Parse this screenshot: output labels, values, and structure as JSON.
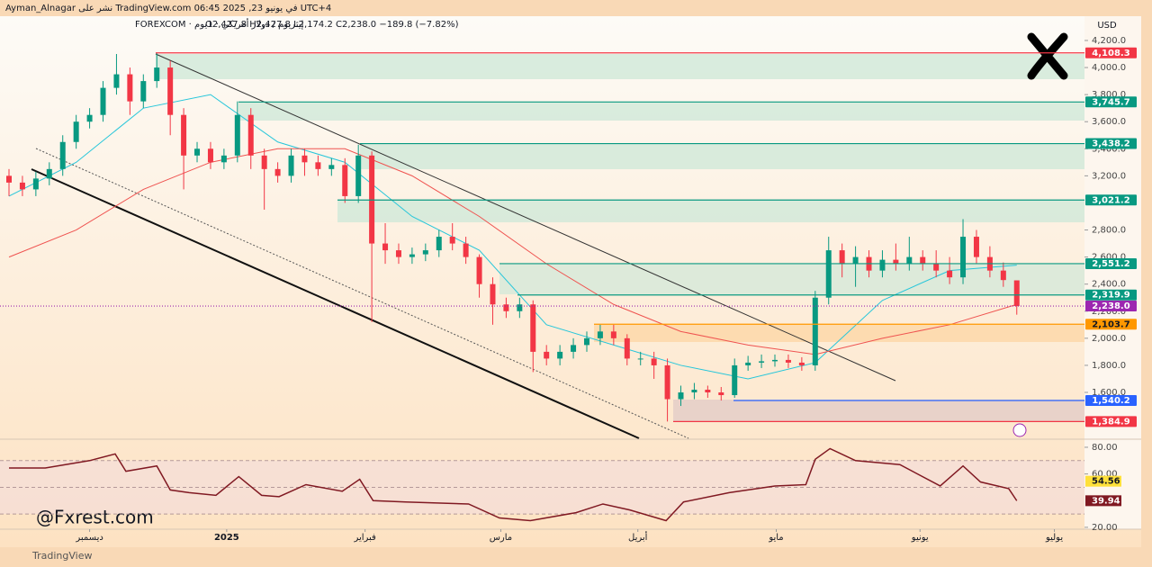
{
  "chart_data": {
    "type": "candlestick",
    "header": {
      "published": "Ayman_Alnagar نشر على TradingView.com في يونيو 23, 2025 06:45 UTC+4",
      "symbol": "إيثريوم / دولار أمريكي · 1يوم · FOREXCOM",
      "ohlc": "O2,427.8 H2,427.8 L2,174.2 C2,238.0 −189.8 (−7.82%)"
    },
    "currency": "USD",
    "watermark": "@Fxrest.com",
    "footer": "TradingView",
    "up_color": "#089981",
    "down_color": "#f23645",
    "xlim": [
      -0.67,
      80.04
    ],
    "xticks": [
      {
        "value": 6.0,
        "label": "ديسمبر"
      },
      {
        "value": 16.2,
        "label": "2025"
      },
      {
        "value": 26.5,
        "label": "فبراير"
      },
      {
        "value": 36.6,
        "label": "مارس"
      },
      {
        "value": 46.8,
        "label": "أبريل"
      },
      {
        "value": 57.1,
        "label": "مايو"
      },
      {
        "value": 67.8,
        "label": "يونيو"
      },
      {
        "value": 77.8,
        "label": "يوليو"
      }
    ],
    "ylim": [
      1261,
      4366
    ],
    "yticks": [
      {
        "value": 1600,
        "label": "1,600.0"
      },
      {
        "value": 1800,
        "label": "1,800.0"
      },
      {
        "value": 2000,
        "label": "2,000.0"
      },
      {
        "value": 2200,
        "label": "2,200.0"
      },
      {
        "value": 2400,
        "label": "2,400.0"
      },
      {
        "value": 2600,
        "label": "2,600.0"
      },
      {
        "value": 2800,
        "label": "2,800.0"
      },
      {
        "value": 3200,
        "label": "3,200.0"
      },
      {
        "value": 3400,
        "label": "3,400.0"
      },
      {
        "value": 3600,
        "label": "3,600.0"
      },
      {
        "value": 3800,
        "label": "3,800.0"
      },
      {
        "value": 4000,
        "label": "4,000.0"
      },
      {
        "value": 4200,
        "label": "4,200.0"
      }
    ],
    "open": [
      3200,
      3150,
      3100,
      3180,
      3250,
      3450,
      3600,
      3650,
      3850,
      3950,
      3750,
      3900,
      4000,
      3650,
      3350,
      3400,
      3300,
      3350,
      3650,
      3350,
      3250,
      3200,
      3350,
      3300,
      3250,
      3280,
      3050,
      3350,
      2700,
      2650,
      2600,
      2620,
      2650,
      2750,
      2700,
      2600,
      2400,
      2250,
      2200,
      2250,
      1900,
      1850,
      1900,
      1950,
      2000,
      2050,
      2000,
      1850,
      1850,
      1800,
      1550,
      1600,
      1620,
      1600,
      1580,
      1800,
      1820,
      1830,
      1840,
      1820,
      1800,
      2300,
      2650,
      2550,
      2600,
      2500,
      2580,
      2550,
      2600,
      2550,
      2500,
      2450,
      2750,
      2600,
      2500,
      2427.8
    ],
    "high": [
      3250,
      3200,
      3230,
      3300,
      3500,
      3650,
      3700,
      3900,
      4100,
      4000,
      3950,
      4108.3,
      4050,
      3700,
      3450,
      3450,
      3400,
      3750,
      3700,
      3400,
      3300,
      3400,
      3400,
      3350,
      3330,
      3330,
      3430,
      3380,
      2850,
      2700,
      2670,
      2700,
      2800,
      2850,
      2750,
      2620,
      2450,
      2300,
      2300,
      2280,
      1950,
      1950,
      2000,
      2050,
      2100,
      2100,
      2030,
      1900,
      1900,
      1850,
      1650,
      1670,
      1650,
      1640,
      1850,
      1870,
      1880,
      1880,
      1880,
      1860,
      2350,
      2750,
      2700,
      2680,
      2650,
      2650,
      2700,
      2750,
      2650,
      2650,
      2600,
      2880,
      2800,
      2680,
      2560,
      2427.8
    ],
    "low": [
      3050,
      3050,
      3050,
      3130,
      3200,
      3400,
      3550,
      3600,
      3800,
      3650,
      3700,
      3850,
      3500,
      3100,
      3300,
      3250,
      3250,
      3300,
      3250,
      2950,
      3150,
      3150,
      3200,
      3200,
      3200,
      3000,
      3000,
      2120,
      2550,
      2550,
      2550,
      2570,
      2600,
      2650,
      2550,
      2300,
      2100,
      2150,
      2150,
      1750,
      1800,
      1800,
      1850,
      1900,
      1950,
      1950,
      1800,
      1800,
      1700,
      1385,
      1500,
      1550,
      1560,
      1540,
      1560,
      1760,
      1780,
      1790,
      1780,
      1760,
      1760,
      2250,
      2450,
      2380,
      2450,
      2450,
      2500,
      2500,
      2500,
      2450,
      2400,
      2400,
      2550,
      2450,
      2380,
      2174.2
    ],
    "close": [
      3150,
      3100,
      3180,
      3250,
      3450,
      3600,
      3650,
      3850,
      3950,
      3750,
      3900,
      4000,
      3650,
      3350,
      3400,
      3300,
      3350,
      3650,
      3350,
      3250,
      3200,
      3350,
      3300,
      3250,
      3280,
      3050,
      3350,
      2700,
      2650,
      2600,
      2620,
      2650,
      2750,
      2700,
      2600,
      2400,
      2250,
      2200,
      2250,
      1900,
      1850,
      1900,
      1950,
      2000,
      2050,
      2000,
      1850,
      1850,
      1800,
      1550,
      1600,
      1620,
      1600,
      1580,
      1800,
      1820,
      1830,
      1840,
      1820,
      1800,
      2300,
      2650,
      2550,
      2600,
      2500,
      2580,
      2550,
      2600,
      2550,
      2500,
      2450,
      2750,
      2600,
      2500,
      2430,
      2238.0
    ],
    "overlays": [
      {
        "color": "#26c6da",
        "x": [
          0,
          5,
          10,
          15,
          20,
          25,
          30,
          35,
          40,
          45,
          50,
          55,
          60,
          65,
          70,
          75
        ],
        "values": [
          3050,
          3300,
          3700,
          3800,
          3450,
          3300,
          2900,
          2650,
          2100,
          1950,
          1800,
          1700,
          1820,
          2280,
          2500,
          2540
        ]
      },
      {
        "color": "#ef5350",
        "x": [
          0,
          5,
          10,
          15,
          20,
          25,
          30,
          35,
          40,
          45,
          50,
          55,
          60,
          65,
          70,
          75
        ],
        "values": [
          2600,
          2800,
          3100,
          3300,
          3400,
          3400,
          3200,
          2900,
          2550,
          2250,
          2050,
          1950,
          1880,
          2000,
          2100,
          2250
        ]
      }
    ],
    "levels": [
      {
        "value": 4108.3,
        "label": "4,108.3",
        "color": "#f23645"
      },
      {
        "value": 3745.7,
        "label": "3,745.7",
        "color": "#089981"
      },
      {
        "value": 3438.2,
        "label": "3,438.2",
        "color": "#089981"
      },
      {
        "value": 3021.2,
        "label": "3,021.2",
        "color": "#089981"
      },
      {
        "value": 2551.2,
        "label": "2,551.2",
        "color": "#089981"
      },
      {
        "value": 2319.9,
        "label": "2,319.9",
        "color": "#089981"
      },
      {
        "value": 2238.0,
        "label": "2,238.0",
        "color": "#9c27b0"
      },
      {
        "value": 2103.7,
        "label": "2,103.7",
        "color": "#ff9800"
      },
      {
        "value": 1540.2,
        "label": "1,540.2",
        "color": "#2962ff"
      },
      {
        "value": 1384.9,
        "label": "1,384.9",
        "color": "#f23645"
      }
    ],
    "rsi": {
      "color": "#801922",
      "ylim": [
        10.5,
        84.7
      ],
      "yticks": [
        {
          "value": 20,
          "label": "20.00"
        },
        {
          "value": 60,
          "label": "60.00"
        },
        {
          "value": 80,
          "label": "80.00"
        }
      ],
      "bands": [
        70,
        50,
        30
      ],
      "x": [
        0,
        2.7,
        6,
        7.9,
        8.7,
        11,
        12,
        13.4,
        15.4,
        17.1,
        18.8,
        20.1,
        22.1,
        24.8,
        26.1,
        27.1,
        29.5,
        34.2,
        36.5,
        38.8,
        42.2,
        44.2,
        46.2,
        48.9,
        50.2,
        53.6,
        57,
        59.3,
        60,
        61.1,
        63,
        66.3,
        69.3,
        71,
        72.3,
        74.4,
        75
      ],
      "values": [
        64.5,
        64.5,
        70,
        75,
        62,
        66,
        48,
        46,
        44,
        58,
        44,
        43,
        52,
        47,
        56,
        40,
        39,
        37.5,
        27,
        25,
        31,
        37.5,
        33,
        25,
        39,
        46,
        51,
        52,
        71,
        79,
        70,
        67,
        51,
        66,
        54,
        49,
        39.94
      ],
      "markers": [
        {
          "value": 54.56,
          "color": "#ffe03a"
        },
        {
          "value": 39.94,
          "color": "#801922"
        }
      ]
    }
  }
}
